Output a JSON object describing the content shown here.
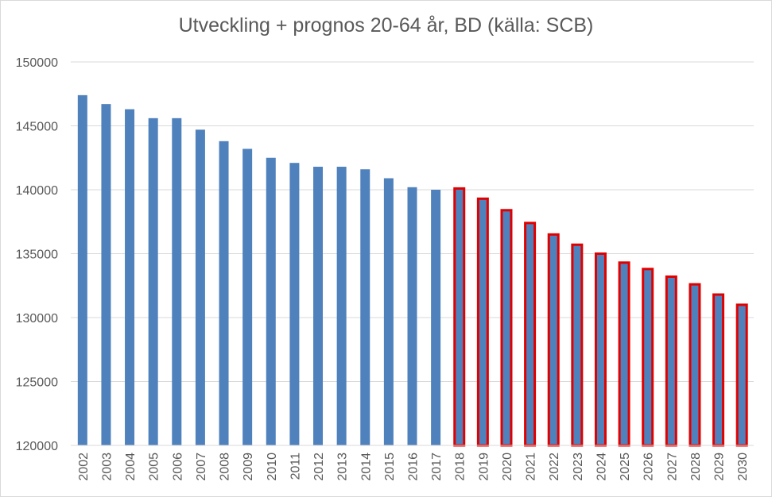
{
  "chart_data": {
    "type": "bar",
    "title": "Utveckling + prognos 20-64 år, BD (källa: SCB)",
    "xlabel": "",
    "ylabel": "",
    "ylim": [
      120000,
      150000
    ],
    "yticks": [
      120000,
      125000,
      130000,
      135000,
      140000,
      145000,
      150000
    ],
    "grid": true,
    "legend": "none",
    "categories": [
      "2002",
      "2003",
      "2004",
      "2005",
      "2006",
      "2007",
      "2008",
      "2009",
      "2010",
      "2011",
      "2012",
      "2013",
      "2014",
      "2015",
      "2016",
      "2017",
      "2018",
      "2019",
      "2020",
      "2021",
      "2022",
      "2023",
      "2024",
      "2025",
      "2026",
      "2027",
      "2028",
      "2029",
      "2030"
    ],
    "values": [
      147400,
      146700,
      146300,
      145600,
      145600,
      144700,
      143800,
      143200,
      142500,
      142100,
      141800,
      141800,
      141600,
      140900,
      140200,
      140000,
      140100,
      139300,
      138400,
      137400,
      136500,
      135700,
      135000,
      134300,
      133800,
      133200,
      132600,
      131800,
      131000
    ],
    "forecast_from": "2018",
    "colors": {
      "bar": "#4f81bd",
      "forecast_outline": "#e00000",
      "grid": "#d9d9d9",
      "text": "#595959"
    }
  }
}
